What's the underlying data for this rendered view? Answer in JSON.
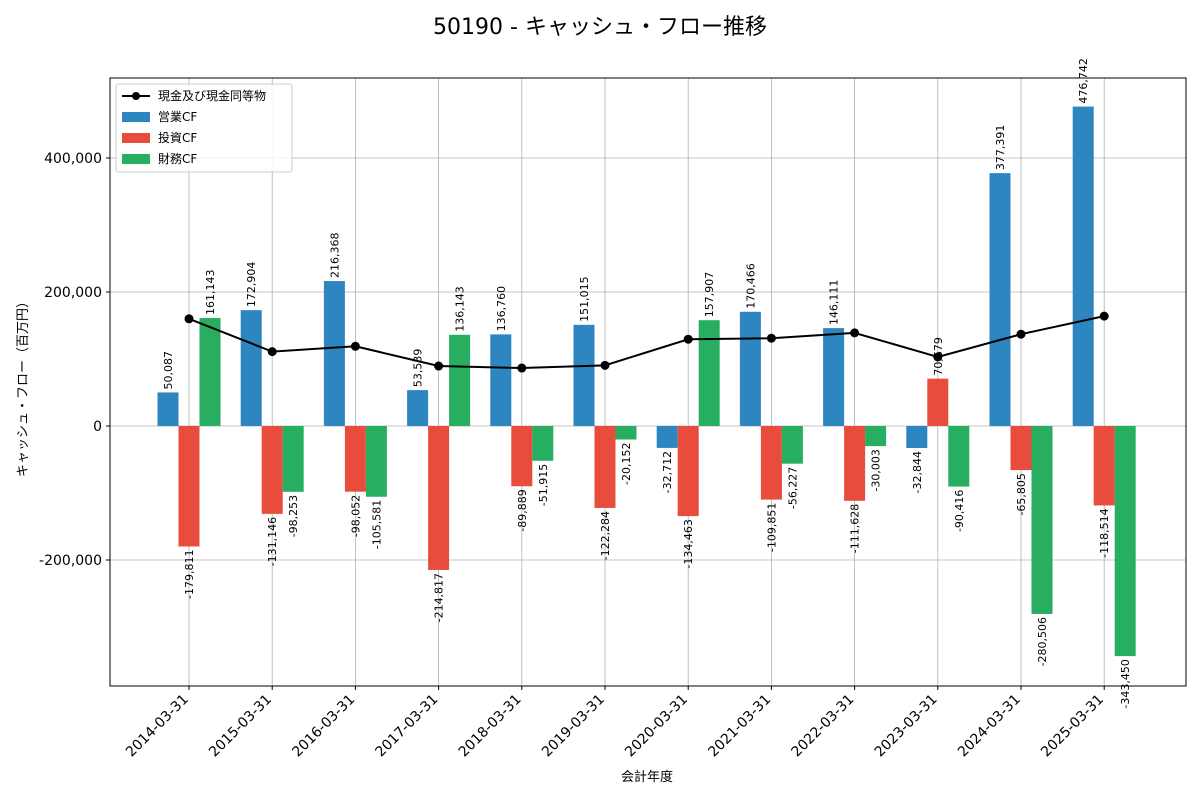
{
  "chart_data": {
    "type": "bar",
    "title": "50190 - キャッシュ・フロー推移",
    "xlabel": "会計年度",
    "ylabel": "キャッシュ・フロー（百万円）",
    "ylim": [
      -390000,
      520000
    ],
    "yticks": [
      -200000,
      0,
      200000,
      400000
    ],
    "ytick_labels": [
      "-200,000",
      "0",
      "200,000",
      "400,000"
    ],
    "grid": true,
    "legend_position": "top-left",
    "categories": [
      "2014-03-31",
      "2015-03-31",
      "2016-03-31",
      "2017-03-31",
      "2018-03-31",
      "2019-03-31",
      "2020-03-31",
      "2021-03-31",
      "2022-03-31",
      "2023-03-31",
      "2024-03-31",
      "2025-03-31"
    ],
    "series": [
      {
        "name": "営業CF",
        "kind": "bar",
        "color": "#2e86c1",
        "values": [
          50087,
          172904,
          216368,
          53539,
          136760,
          151015,
          -32712,
          170466,
          146111,
          -32844,
          377391,
          476742
        ],
        "labels": [
          "50,087",
          "172,904",
          "216,368",
          "53,539",
          "136,760",
          "151,015",
          "-32,712",
          "170,466",
          "146,111",
          "-32,844",
          "377,391",
          "476,742"
        ]
      },
      {
        "name": "投資CF",
        "kind": "bar",
        "color": "#e74c3c",
        "values": [
          -179811,
          -131146,
          -98052,
          -214817,
          -89889,
          -122284,
          -134463,
          -109851,
          -111628,
          70679,
          -65805,
          -118514
        ],
        "labels": [
          "-179,811",
          "-131,146",
          "-98,052",
          "-214,817",
          "-89,889",
          "-122,284",
          "-134,463",
          "-109,851",
          "-111,628",
          "70,679",
          "-65,805",
          "-118,514"
        ]
      },
      {
        "name": "財務CF",
        "kind": "bar",
        "color": "#27ae60",
        "values": [
          161143,
          -98253,
          -105581,
          136143,
          -51915,
          -20152,
          157907,
          -56227,
          -30003,
          -90416,
          -280506,
          -343450
        ],
        "labels": [
          "161,143",
          "-98,253",
          "-105,581",
          "136,143",
          "-51,915",
          "-20,152",
          "157,907",
          "-56,227",
          "-30,003",
          "-90,416",
          "-280,506",
          "-343,450"
        ]
      },
      {
        "name": "現金及び現金同等物",
        "kind": "line",
        "color": "#000000",
        "values": [
          160000,
          111000,
          119000,
          89500,
          86500,
          90500,
          129500,
          131000,
          139000,
          103000,
          137000,
          164000
        ]
      }
    ]
  }
}
